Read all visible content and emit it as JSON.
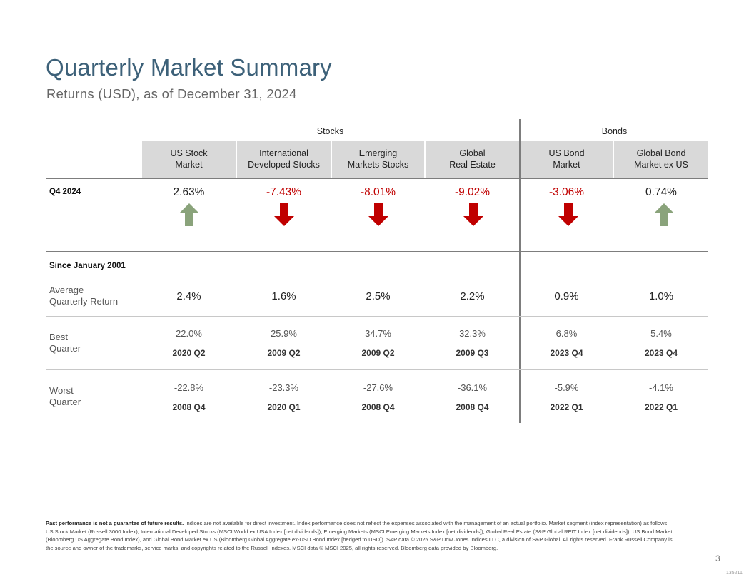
{
  "title": "Quarterly Market Summary",
  "subtitle": "Returns (USD), as of December 31, 2024",
  "groups": {
    "stocks": "Stocks",
    "bonds": "Bonds"
  },
  "columns": [
    {
      "line1": "US Stock",
      "line2": "Market"
    },
    {
      "line1": "International",
      "line2": "Developed Stocks"
    },
    {
      "line1": "Emerging",
      "line2": "Markets Stocks"
    },
    {
      "line1": "Global",
      "line2": "Real Estate"
    },
    {
      "line1": "US Bond",
      "line2": "Market"
    },
    {
      "line1": "Global Bond",
      "line2": "Market ex US"
    }
  ],
  "q4": {
    "label": "Q4 2024",
    "values": [
      "2.63%",
      "-7.43%",
      "-8.01%",
      "-9.02%",
      "-3.06%",
      "0.74%"
    ],
    "directions": [
      "up",
      "down",
      "down",
      "down",
      "down",
      "up"
    ]
  },
  "since_label": "Since January 2001",
  "average": {
    "label_line1": "Average",
    "label_line2": "Quarterly Return",
    "values": [
      "2.4%",
      "1.6%",
      "2.5%",
      "2.2%",
      "0.9%",
      "1.0%"
    ]
  },
  "best": {
    "label_line1": "Best",
    "label_line2": "Quarter",
    "values": [
      "22.0%",
      "25.9%",
      "34.7%",
      "32.3%",
      "6.8%",
      "5.4%"
    ],
    "quarters": [
      "2020 Q2",
      "2009 Q2",
      "2009 Q2",
      "2009 Q3",
      "2023 Q4",
      "2023 Q4"
    ]
  },
  "worst": {
    "label_line1": "Worst",
    "label_line2": "Quarter",
    "values": [
      "-22.8%",
      "-23.3%",
      "-27.6%",
      "-36.1%",
      "-5.9%",
      "-4.1%"
    ],
    "quarters": [
      "2008 Q4",
      "2020 Q1",
      "2008 Q4",
      "2008 Q4",
      "2022 Q1",
      "2022 Q1"
    ]
  },
  "footnote": {
    "bold": "Past performance is not a guarantee of future results.",
    "text": " Indices are not available for direct investment. Index performance does not reflect the expenses associated with the management of an actual portfolio. Market segment (index representation) as follows: US Stock Market (Russell 3000 Index), International Developed Stocks (MSCI World ex USA Index [net dividends]), Emerging Markets (MSCI Emerging Markets Index [net dividends]), Global Real Estate (S&P Global REIT Index [net dividends]), US Bond Market (Bloomberg US Aggregate Bond Index), and Global Bond Market ex US (Bloomberg Global Aggregate ex-USD Bond Index [hedged to USD]). S&P data © 2025 S&P Dow Jones Indices LLC, a division of S&P Global. All rights reserved. Frank Russell Company is the source and owner of the trademarks, service marks, and copyrights related to the Russell Indexes. MSCI data © MSCI 2025, all rights reserved. Bloomberg data provided by Bloomberg."
  },
  "page_number": "3",
  "doc_code": "135211",
  "colors": {
    "up": "#8aa37b",
    "down": "#c00000",
    "title": "#3d6179",
    "header_bg": "#d9d9d9"
  }
}
